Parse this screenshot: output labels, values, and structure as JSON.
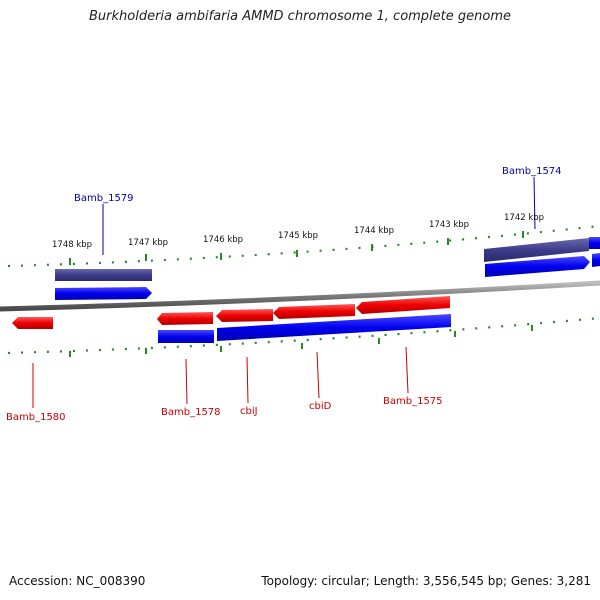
{
  "title": "Burkholderia ambifaria AMMD chromosome 1, complete genome",
  "footer": {
    "accession": "Accession: NC_008390",
    "summary": "Topology: circular; Length: 3,556,545 bp; Genes: 3,281"
  },
  "tick_labels": [
    "1748 kbp",
    "1747 kbp",
    "1746 kbp",
    "1745 kbp",
    "1744 kbp",
    "1743 kbp",
    "1742 kbp"
  ],
  "genes": [
    {
      "name": "Bamb_1579",
      "strand": "forward",
      "color": "#0000aa"
    },
    {
      "name": "Bamb_1574",
      "strand": "forward",
      "color": "#0000aa"
    },
    {
      "name": "Bamb_1580",
      "strand": "reverse",
      "color": "#cc0000"
    },
    {
      "name": "Bamb_1578",
      "strand": "reverse",
      "color": "#cc0000"
    },
    {
      "name": "cbiJ",
      "strand": "reverse",
      "color": "#cc0000"
    },
    {
      "name": "cbiD",
      "strand": "reverse",
      "color": "#cc0000"
    },
    {
      "name": "Bamb_1575",
      "strand": "reverse",
      "color": "#cc0000"
    }
  ],
  "colors": {
    "forward_gene": "#0000ff",
    "reverse_gene": "#ff0000",
    "cds_band": "#3c3c8c",
    "backbone": "#7a7a7a",
    "ticks": "#228b22"
  }
}
